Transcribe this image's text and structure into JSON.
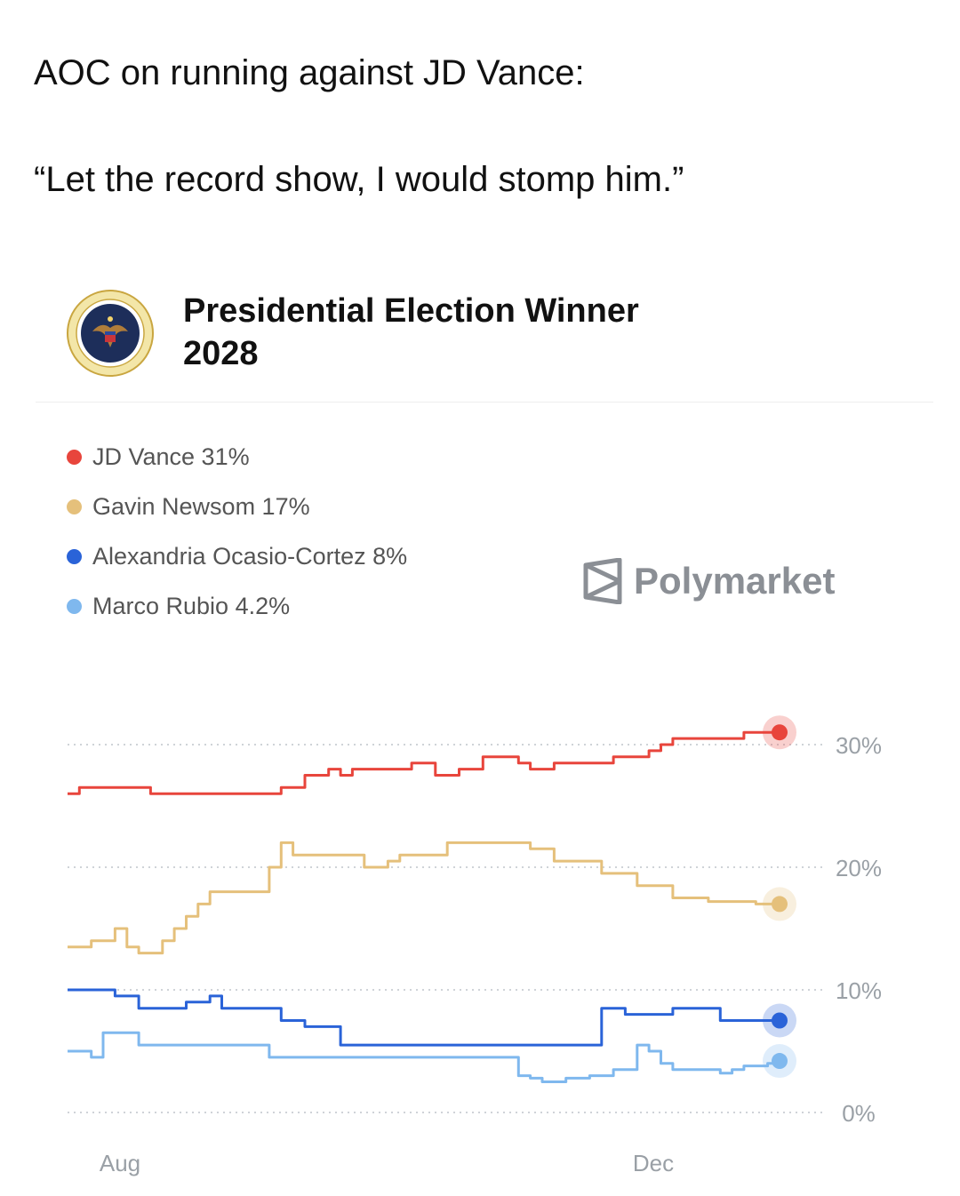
{
  "post": {
    "line1": "AOC on running against JD Vance:",
    "line2": "“Let the record show, I would stomp him.”"
  },
  "card": {
    "title_line1": "Presidential Election Winner",
    "title_line2": "2028",
    "brand": "Polymarket",
    "seal_icon": "presidential-seal-icon"
  },
  "chart_data": {
    "type": "line",
    "title": "Presidential Election Winner 2028",
    "x_ticks": [
      "Aug",
      "Dec"
    ],
    "y_ticks": [
      "0%",
      "10%",
      "20%",
      "30%"
    ],
    "ylim": [
      0,
      30
    ],
    "grid": true,
    "legend_position": "top-left",
    "series": [
      {
        "name": "JD Vance",
        "label": "31%",
        "color": "#e8453c",
        "values": [
          26,
          26.5,
          26.5,
          26.5,
          26.5,
          26.5,
          26.5,
          26,
          26,
          26,
          26,
          26,
          26,
          26,
          26,
          26,
          26,
          26,
          26.5,
          26.5,
          27.5,
          27.5,
          28,
          27.5,
          28,
          28,
          28,
          28,
          28,
          28.5,
          28.5,
          27.5,
          27.5,
          28,
          28,
          29,
          29,
          29,
          28.5,
          28,
          28,
          28.5,
          28.5,
          28.5,
          28.5,
          28.5,
          29,
          29,
          29,
          29.5,
          30,
          30.5,
          30.5,
          30.5,
          30.5,
          30.5,
          30.5,
          31,
          31,
          31,
          31
        ]
      },
      {
        "name": "Gavin Newsom",
        "label": "17%",
        "color": "#e5c07b",
        "values": [
          13.5,
          13.5,
          14,
          14,
          15,
          13.5,
          13,
          13,
          14,
          15,
          16,
          17,
          18,
          18,
          18,
          18,
          18,
          20,
          22,
          21,
          21,
          21,
          21,
          21,
          21,
          20,
          20,
          20.5,
          21,
          21,
          21,
          21,
          22,
          22,
          22,
          22,
          22,
          22,
          22,
          21.5,
          21.5,
          20.5,
          20.5,
          20.5,
          20.5,
          19.5,
          19.5,
          19.5,
          18.5,
          18.5,
          18.5,
          17.5,
          17.5,
          17.5,
          17.2,
          17.2,
          17.2,
          17.2,
          17,
          17,
          17
        ]
      },
      {
        "name": "Alexandria Ocasio-Cortez",
        "label": "8%",
        "color": "#2a63d8",
        "values": [
          10,
          10,
          10,
          10,
          9.5,
          9.5,
          8.5,
          8.5,
          8.5,
          8.5,
          9,
          9,
          9.5,
          8.5,
          8.5,
          8.5,
          8.5,
          8.5,
          7.5,
          7.5,
          7,
          7,
          7,
          5.5,
          5.5,
          5.5,
          5.5,
          5.5,
          5.5,
          5.5,
          5.5,
          5.5,
          5.5,
          5.5,
          5.5,
          5.5,
          5.5,
          5.5,
          5.5,
          5.5,
          5.5,
          5.5,
          5.5,
          5.5,
          5.5,
          8.5,
          8.5,
          8,
          8,
          8,
          8,
          8.5,
          8.5,
          8.5,
          8.5,
          7.5,
          7.5,
          7.5,
          7.5,
          7.5,
          7.5
        ]
      },
      {
        "name": "Marco Rubio",
        "label": "4.2%",
        "color": "#7fb8ee",
        "values": [
          5,
          5,
          4.5,
          6.5,
          6.5,
          6.5,
          5.5,
          5.5,
          5.5,
          5.5,
          5.5,
          5.5,
          5.5,
          5.5,
          5.5,
          5.5,
          5.5,
          4.5,
          4.5,
          4.5,
          4.5,
          4.5,
          4.5,
          4.5,
          4.5,
          4.5,
          4.5,
          4.5,
          4.5,
          4.5,
          4.5,
          4.5,
          4.5,
          4.5,
          4.5,
          4.5,
          4.5,
          4.5,
          3,
          2.8,
          2.5,
          2.5,
          2.8,
          2.8,
          3,
          3,
          3.5,
          3.5,
          5.5,
          5,
          4,
          3.5,
          3.5,
          3.5,
          3.5,
          3.2,
          3.5,
          3.8,
          3.8,
          4,
          4.2
        ]
      }
    ]
  }
}
